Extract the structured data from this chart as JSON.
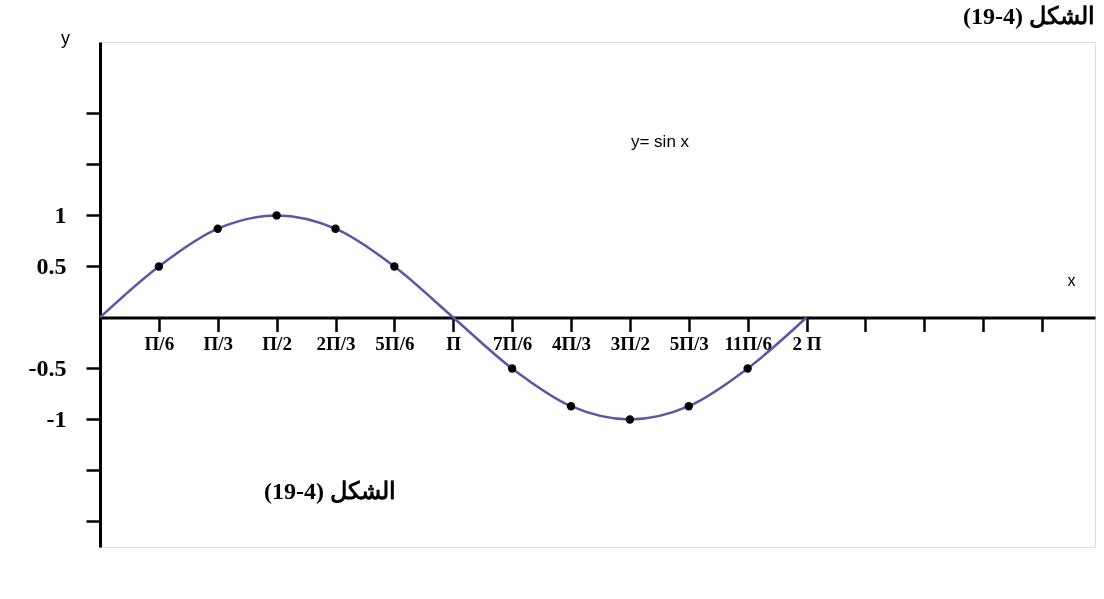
{
  "chart_data": {
    "type": "line",
    "title": "الشكل (4-19)",
    "xlabel": "x",
    "ylabel": "y",
    "annotations": [
      "y= sin x",
      "الشكل (4-19)"
    ],
    "categories": [
      null,
      "Π/6",
      "Π/3",
      "Π/2",
      "2Π/3",
      "5Π/6",
      "Π",
      "7Π/6",
      "4Π/3",
      "3Π/2",
      "5Π/3",
      "11Π/6",
      "2 Π",
      null,
      null,
      null,
      null
    ],
    "ylim": [
      -2.25,
      2.7
    ],
    "yticks": [
      {
        "value": -2,
        "label": null
      },
      {
        "value": -1.5,
        "label": null
      },
      -1,
      -0.5,
      0.5,
      1,
      {
        "value": 1.5,
        "label": null
      },
      {
        "value": 2,
        "label": null
      }
    ],
    "grid": false,
    "line_style": "solid",
    "series": [
      {
        "color": "#5b57a6",
        "values": [
          0,
          0.5,
          0.87,
          1,
          0.87,
          0.5,
          0,
          -0.5,
          -0.87,
          -1,
          -0.87,
          -0.5,
          0,
          null,
          null,
          null,
          null
        ]
      },
      {
        "type": "scatter",
        "color": "#000000",
        "marker": "circle",
        "values": [
          null,
          0.5,
          0.87,
          1,
          0.87,
          0.5,
          null,
          -0.5,
          -0.87,
          -1,
          -0.87,
          -0.5,
          null,
          null,
          null,
          null,
          null
        ]
      }
    ]
  }
}
